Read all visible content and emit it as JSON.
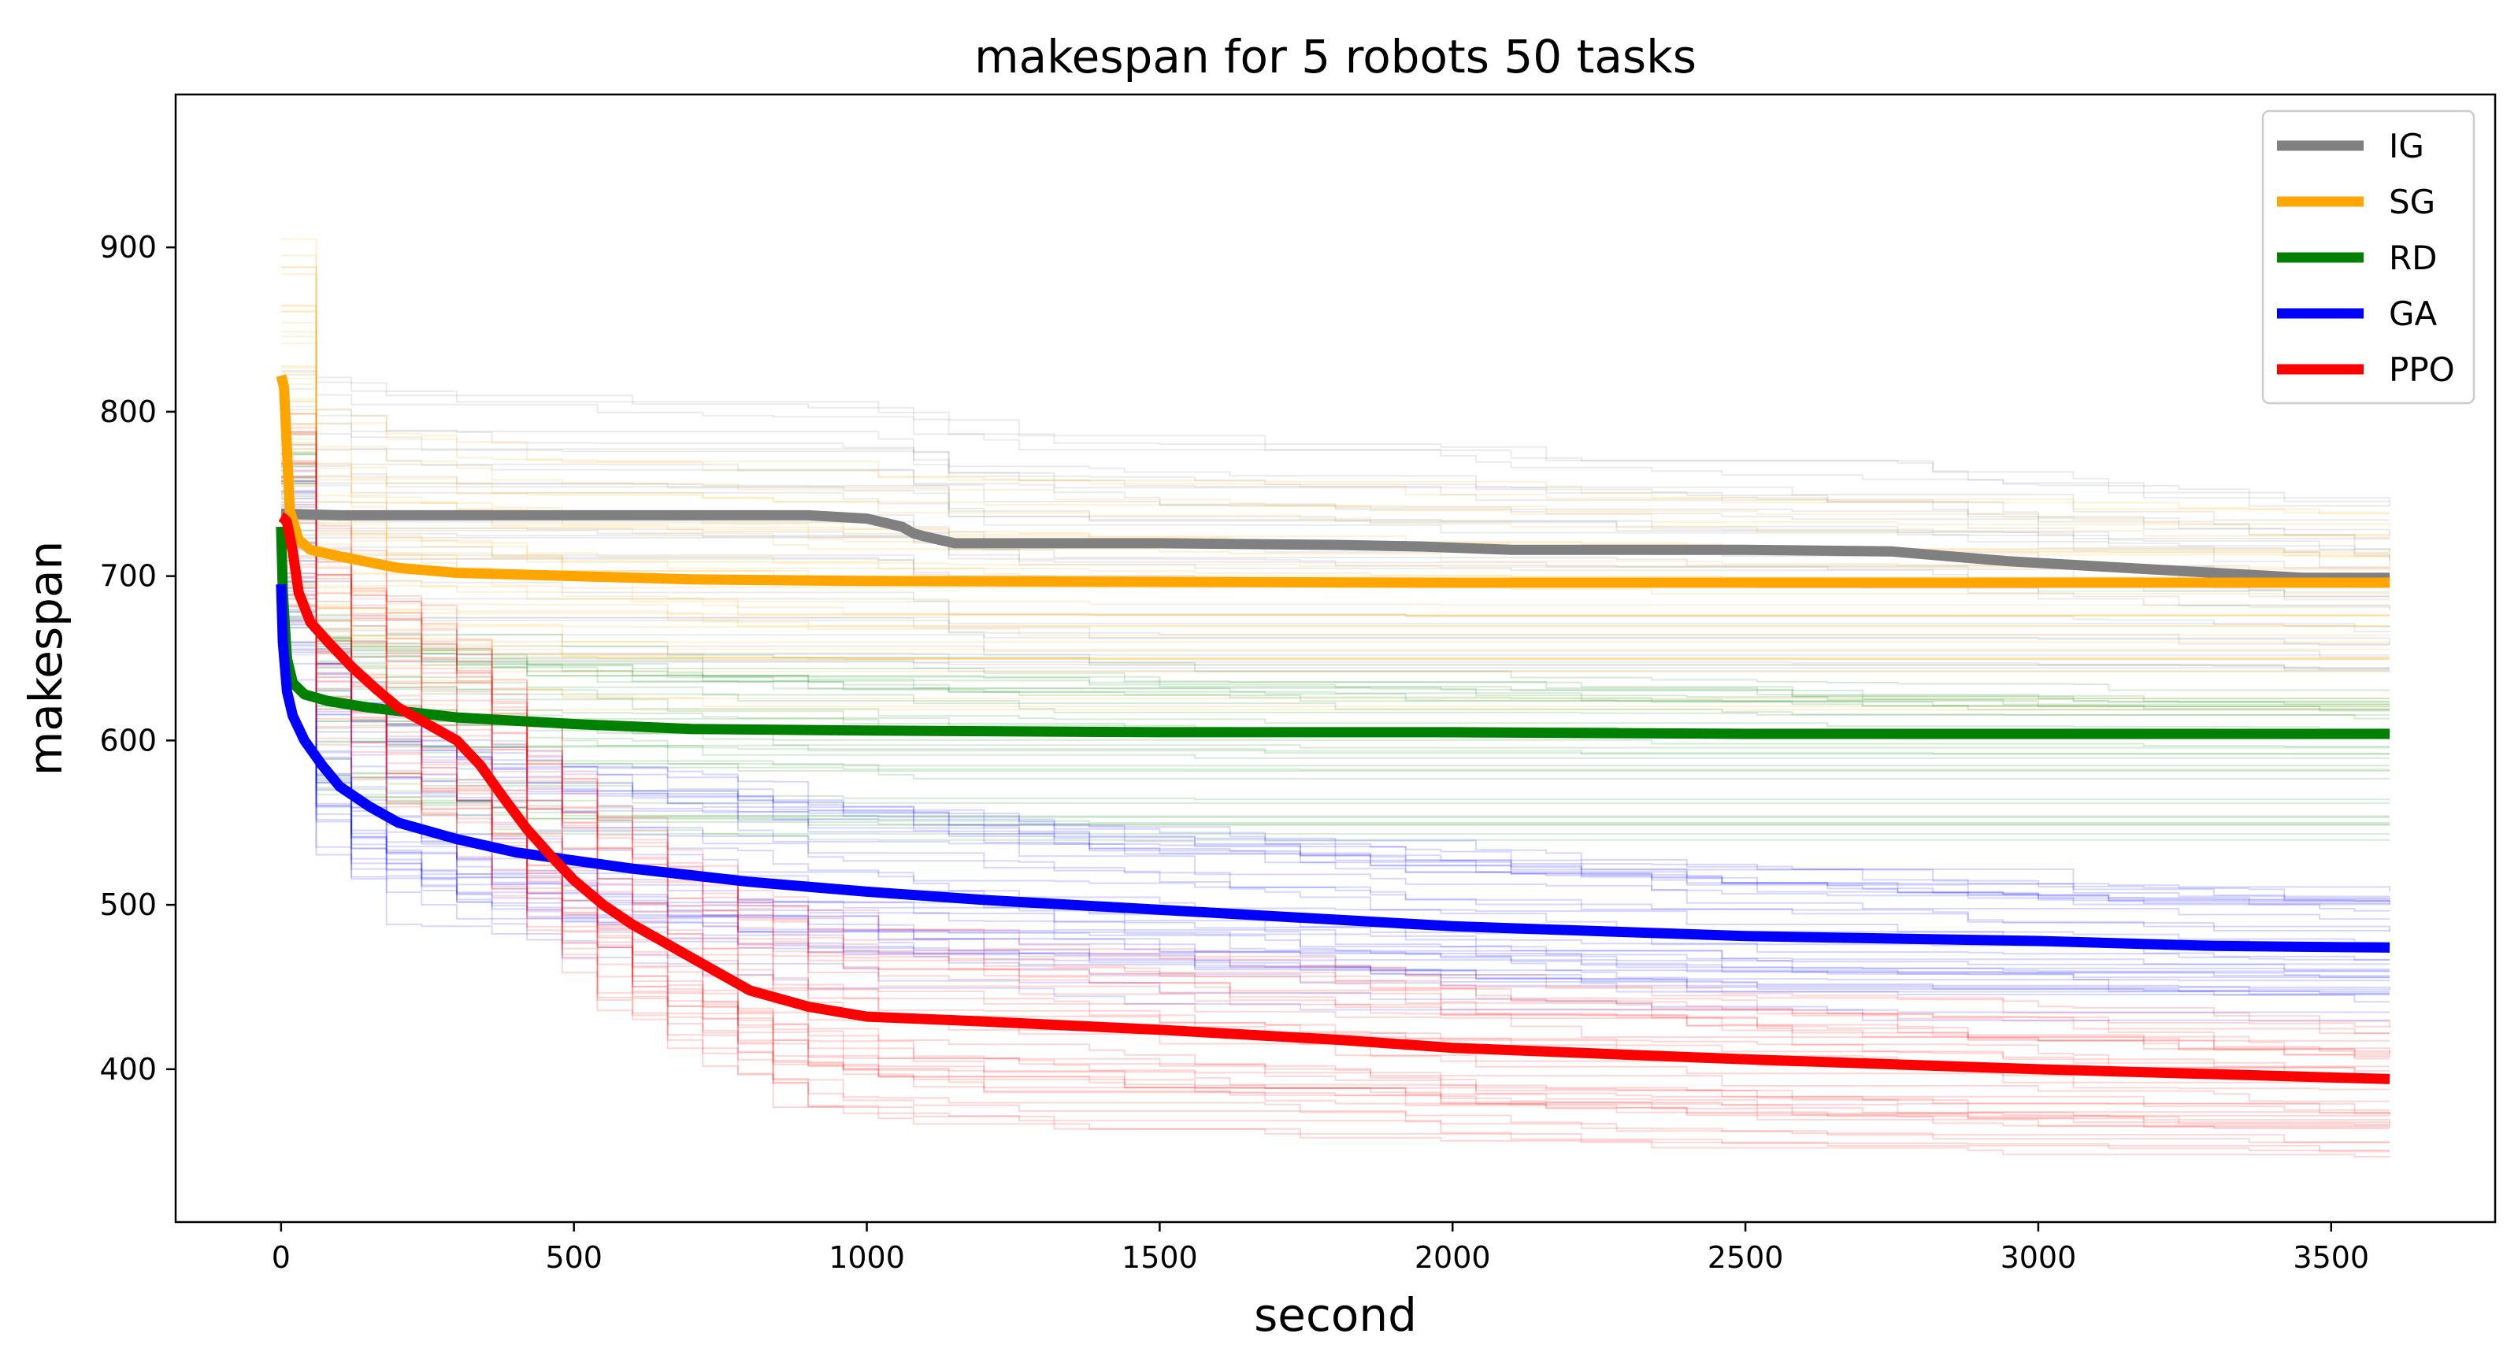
{
  "chart_data": {
    "type": "line",
    "title": "makespan for 5 robots 50 tasks",
    "xlabel": "second",
    "ylabel": "makespan",
    "xlim": [
      -180,
      3780
    ],
    "ylim": [
      307,
      993
    ],
    "xticks": [
      0,
      500,
      1000,
      1500,
      2000,
      2500,
      3000,
      3500
    ],
    "yticks": [
      400,
      500,
      600,
      700,
      800,
      900
    ],
    "grid": false,
    "legend_position": "top-right",
    "series": [
      {
        "name": "IG",
        "color": "#808080",
        "x": [
          0,
          100,
          500,
          900,
          1000,
          1060,
          1080,
          1100,
          1150,
          1200,
          1500,
          1800,
          1950,
          2100,
          2500,
          2750,
          2850,
          2950,
          3100,
          3300,
          3450,
          3600
        ],
        "y": [
          738,
          737,
          737,
          737,
          735,
          730,
          726,
          724,
          720,
          720,
          720,
          719,
          718,
          716,
          716,
          715,
          712,
          709,
          706,
          702,
          699,
          699
        ]
      },
      {
        "name": "SG",
        "color": "#ffa500",
        "x": [
          0,
          5,
          15,
          30,
          50,
          100,
          200,
          300,
          500,
          700,
          1000,
          2000,
          3000,
          3600
        ],
        "y": [
          822,
          815,
          740,
          722,
          716,
          712,
          705,
          702,
          700,
          698,
          697,
          696,
          696,
          696
        ]
      },
      {
        "name": "RD",
        "color": "#008000",
        "x": [
          0,
          3,
          10,
          20,
          40,
          80,
          150,
          300,
          500,
          700,
          1000,
          1500,
          2000,
          2500,
          3000,
          3600
        ],
        "y": [
          730,
          690,
          650,
          635,
          628,
          624,
          620,
          614,
          610,
          607,
          606,
          605,
          605,
          604,
          604,
          604
        ]
      },
      {
        "name": "GA",
        "color": "#0000ff",
        "x": [
          0,
          3,
          10,
          20,
          40,
          70,
          100,
          150,
          200,
          300,
          400,
          500,
          600,
          700,
          800,
          1000,
          1200,
          1500,
          1800,
          2000,
          2500,
          3000,
          3300,
          3600
        ],
        "y": [
          695,
          660,
          630,
          615,
          600,
          585,
          572,
          560,
          550,
          540,
          532,
          527,
          522,
          518,
          514,
          508,
          503,
          497,
          491,
          487,
          481,
          478,
          475,
          474
        ]
      },
      {
        "name": "PPO",
        "color": "#ff0000",
        "x": [
          0,
          5,
          10,
          20,
          30,
          50,
          80,
          120,
          160,
          200,
          250,
          300,
          340,
          380,
          420,
          460,
          500,
          550,
          600,
          650,
          700,
          750,
          800,
          900,
          1000,
          1200,
          1500,
          1800,
          2000,
          2500,
          3000,
          3600
        ],
        "y": [
          736,
          735,
          733,
          715,
          690,
          672,
          660,
          645,
          632,
          620,
          610,
          600,
          585,
          565,
          546,
          530,
          515,
          500,
          488,
          478,
          468,
          458,
          448,
          438,
          432,
          429,
          424,
          418,
          413,
          406,
          400,
          394
        ]
      }
    ]
  }
}
